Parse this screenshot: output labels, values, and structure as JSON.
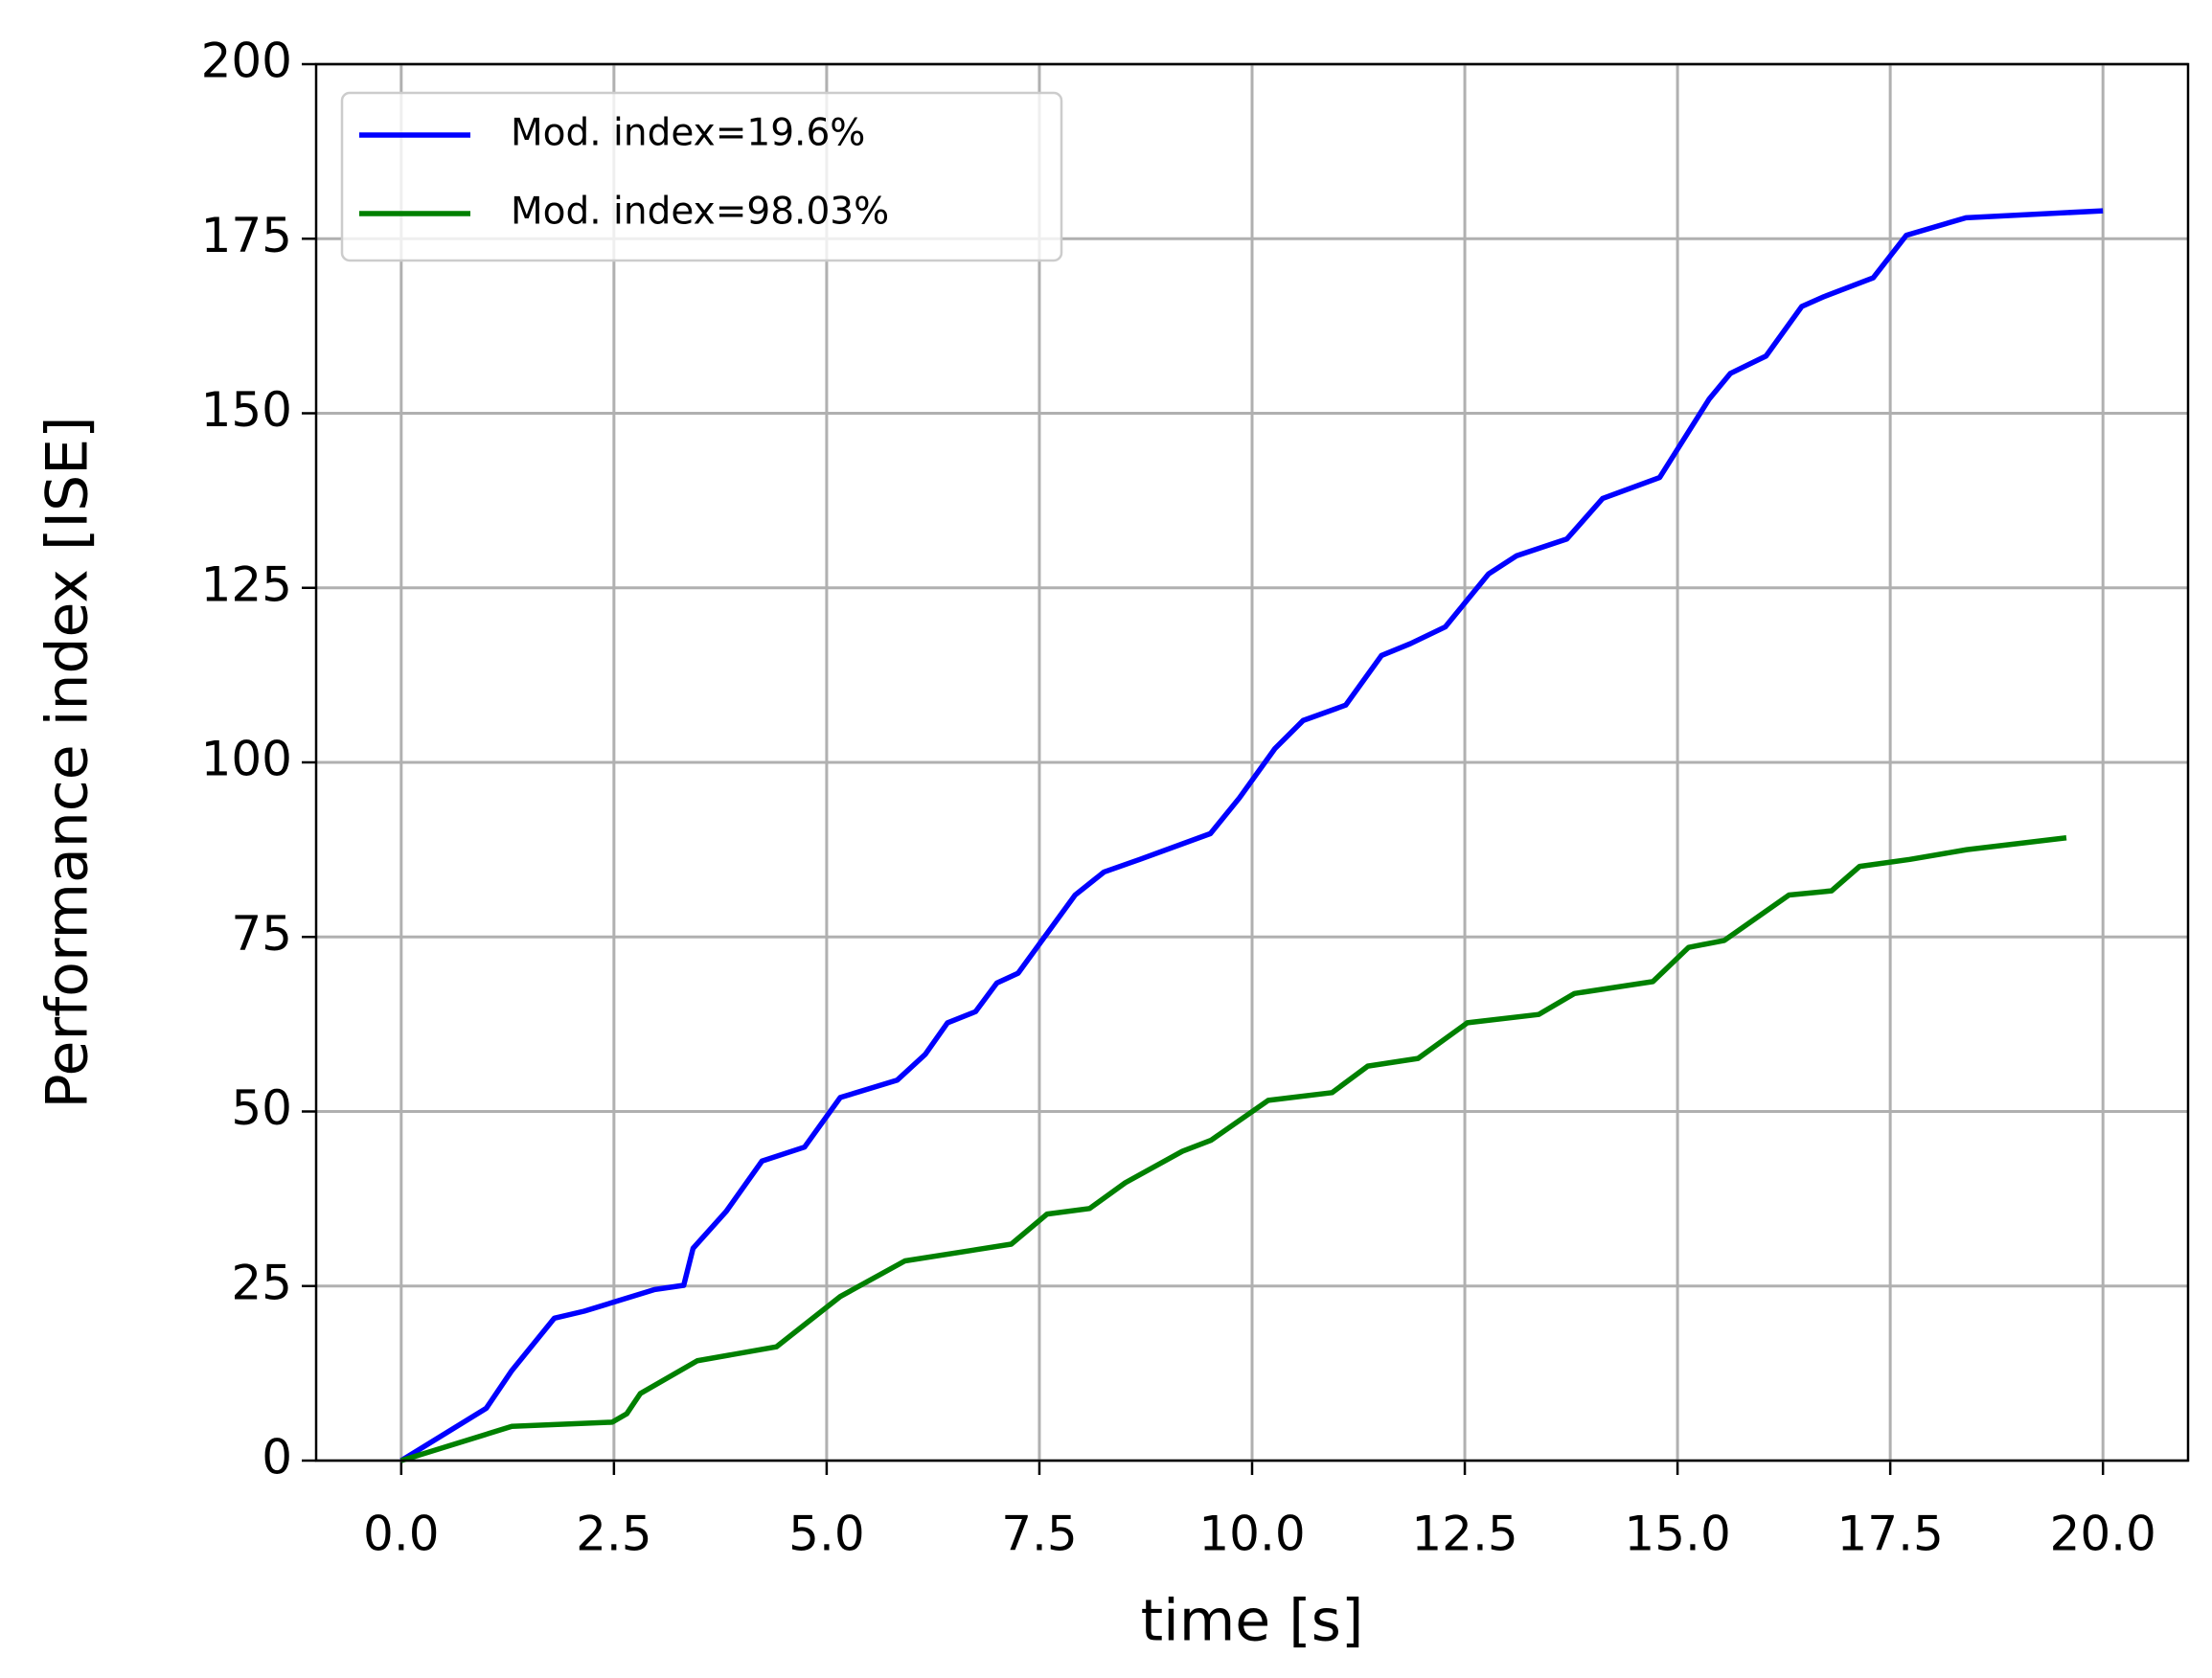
{
  "chart_data": {
    "type": "line",
    "xlabel": "time [s]",
    "ylabel": "Performance index [ISE]",
    "xlim": [
      -1,
      21
    ],
    "ylim": [
      0,
      200
    ],
    "xticks": [
      {
        "value": 0,
        "label": "0.0"
      },
      {
        "value": 2.5,
        "label": "2.5"
      },
      {
        "value": 5,
        "label": "5.0"
      },
      {
        "value": 7.5,
        "label": "7.5"
      },
      {
        "value": 10,
        "label": "10.0"
      },
      {
        "value": 12.5,
        "label": "12.5"
      },
      {
        "value": 15,
        "label": "15.0"
      },
      {
        "value": 17.5,
        "label": "17.5"
      },
      {
        "value": 20,
        "label": "20.0"
      }
    ],
    "yticks": [
      0,
      25,
      50,
      75,
      100,
      125,
      150,
      175,
      200
    ],
    "grid": true,
    "legend_position": "upper-left",
    "series": [
      {
        "name": "Mod. index=19.6%",
        "color": "#0000ff",
        "x": [
          0,
          1.0,
          1.3,
          1.8,
          2.15,
          2.98,
          3.32,
          3.43,
          3.82,
          4.24,
          4.74,
          5.16,
          5.83,
          6.16,
          6.42,
          6.75,
          7.0,
          7.25,
          7.92,
          8.26,
          8.68,
          9.51,
          9.85,
          10.27,
          10.6,
          11.1,
          11.52,
          11.86,
          12.27,
          12.78,
          13.11,
          13.7,
          14.12,
          14.79,
          15.37,
          15.62,
          16.04,
          16.46,
          16.72,
          17.3,
          17.69,
          18.39,
          20.0
        ],
        "values": [
          0,
          7.5,
          12.9,
          20.4,
          21.4,
          24.5,
          25.1,
          30.4,
          35.7,
          42.9,
          44.9,
          52,
          54.5,
          58.2,
          62.7,
          64.3,
          68.4,
          69.8,
          81,
          84.3,
          86.1,
          89.8,
          94.9,
          102,
          106,
          108.2,
          115.3,
          117,
          119.4,
          127,
          129.6,
          132,
          137.8,
          140.8,
          152,
          155.7,
          158.2,
          165.3,
          166.7,
          169.4,
          175.5,
          178,
          179
        ]
      },
      {
        "name": "Mod. index=98.03%",
        "color": "#008000",
        "x": [
          0,
          1.3,
          2.48,
          2.65,
          2.81,
          3.48,
          4.41,
          5.16,
          5.92,
          7.17,
          7.59,
          8.09,
          8.51,
          9.18,
          9.52,
          10.19,
          10.94,
          11.36,
          11.95,
          12.53,
          13.37,
          13.79,
          14.71,
          15.13,
          15.55,
          16.31,
          16.81,
          17.14,
          17.73,
          18.4,
          19.57
        ],
        "values": [
          0,
          4.9,
          5.5,
          6.7,
          9.6,
          14.3,
          16.3,
          23.5,
          28.6,
          31,
          35.3,
          36.1,
          39.8,
          44.3,
          45.9,
          51.6,
          52.7,
          56.5,
          57.6,
          62.7,
          63.9,
          66.9,
          68.6,
          73.5,
          74.5,
          81,
          81.6,
          85.1,
          86.1,
          87.5,
          89.2
        ]
      }
    ]
  }
}
